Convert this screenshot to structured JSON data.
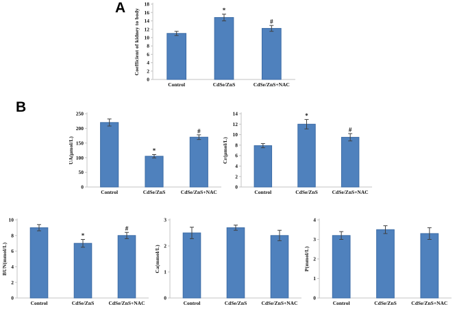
{
  "figure": {
    "panel_a_label": "A",
    "panel_b_label": "B"
  },
  "colors": {
    "bar_fill": "#4f81bd",
    "bar_stroke": "#3c6ca6",
    "error_bar": "#3f3f3f",
    "axis": "#c3c3c3",
    "text": "#111111"
  },
  "chart_data": [
    {
      "id": "kidney-coefficient",
      "panel": "A",
      "type": "bar",
      "ylabel": "Coefficient of kidney to body",
      "categories": [
        "Control",
        "CdSe/ZnS",
        "CdSe/ZnS+NAC"
      ],
      "values": [
        11,
        14.8,
        12.2
      ],
      "errors": [
        0.5,
        0.8,
        0.7
      ],
      "sig_markers": [
        "",
        "*",
        "#"
      ],
      "ylim": [
        0,
        18
      ],
      "ytick_step": 2,
      "grid": false,
      "legend": "none"
    },
    {
      "id": "ua",
      "panel": "B",
      "type": "bar",
      "ylabel": "UA(μmol/L)",
      "categories": [
        "Control",
        "CdSe/ZnS",
        "CdSe/ZnS+NAC"
      ],
      "values": [
        220,
        105,
        170
      ],
      "errors": [
        12,
        6,
        8
      ],
      "sig_markers": [
        "",
        "*",
        "#"
      ],
      "ylim": [
        0,
        250
      ],
      "ytick_step": 50,
      "grid": false,
      "legend": "none"
    },
    {
      "id": "cr",
      "panel": "B",
      "type": "bar",
      "ylabel": "Cr(μmol/L)",
      "categories": [
        "Control",
        "CdSe/ZnS",
        "CdSe/ZnS+NAC"
      ],
      "values": [
        7.9,
        12,
        9.5
      ],
      "errors": [
        0.4,
        0.9,
        0.7
      ],
      "sig_markers": [
        "",
        "*",
        "#"
      ],
      "ylim": [
        0,
        14
      ],
      "ytick_step": 2,
      "grid": false,
      "legend": "none"
    },
    {
      "id": "bun",
      "panel": "B",
      "type": "bar",
      "ylabel": "BUN(mmol/L)",
      "categories": [
        "Control",
        "CdSe/ZnS",
        "CdSe/ZnS+NAC"
      ],
      "values": [
        9,
        7,
        8
      ],
      "errors": [
        0.4,
        0.5,
        0.4
      ],
      "sig_markers": [
        "",
        "*",
        "#"
      ],
      "ylim": [
        0,
        10
      ],
      "ytick_step": 2,
      "grid": false,
      "legend": "none"
    },
    {
      "id": "ca",
      "panel": "B",
      "type": "bar",
      "ylabel": "Ca(mmol/L)",
      "categories": [
        "Control",
        "CdSe/ZnS",
        "CdSe/ZnS+NAC"
      ],
      "values": [
        2.5,
        2.7,
        2.4
      ],
      "errors": [
        0.22,
        0.1,
        0.2
      ],
      "sig_markers": [
        "",
        "",
        ""
      ],
      "ylim": [
        0,
        3
      ],
      "ytick_step": 1,
      "grid": false,
      "legend": "none"
    },
    {
      "id": "p",
      "panel": "B",
      "type": "bar",
      "ylabel": "P(mmol/L)",
      "categories": [
        "Control",
        "CdSe/ZnS",
        "CdSe/ZnS+NAC"
      ],
      "values": [
        3.2,
        3.5,
        3.3
      ],
      "errors": [
        0.2,
        0.2,
        0.3
      ],
      "sig_markers": [
        "",
        "",
        ""
      ],
      "ylim": [
        0,
        4
      ],
      "ytick_step": 1,
      "grid": false,
      "legend": "none"
    }
  ]
}
